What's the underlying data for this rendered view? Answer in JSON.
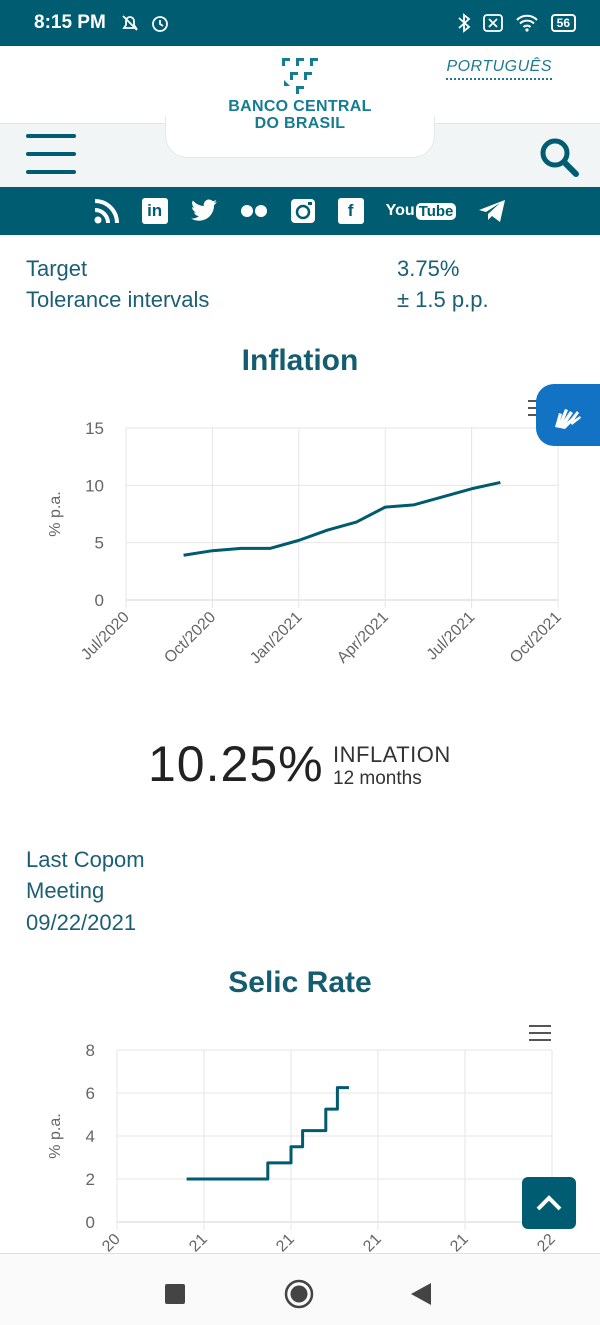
{
  "status_bar": {
    "time": "8:15 PM",
    "battery": "56",
    "left_icons": [
      "muted-bell-icon",
      "alarm-icon"
    ],
    "right_icons": [
      "bluetooth-icon",
      "sim-off-icon",
      "wifi-icon",
      "battery-icon"
    ]
  },
  "header": {
    "logo_line1": "BANCO CENTRAL",
    "logo_line2": "DO BRASIL",
    "language_link": "PORTUGUÊS"
  },
  "social": {
    "icons": [
      "rss-icon",
      "linkedin-icon",
      "twitter-icon",
      "flickr-icon",
      "instagram-icon",
      "facebook-icon",
      "youtube-icon",
      "telegram-icon"
    ],
    "linkedin_label": "in",
    "facebook_label": "f",
    "youtube_you": "You",
    "youtube_tube": "Tube"
  },
  "targets": {
    "target_label": "Target",
    "target_value": "3.75%",
    "tolerance_label": "Tolerance intervals",
    "tolerance_value": "± 1.5 p.p."
  },
  "inflation": {
    "value": "10.25%",
    "label": "INFLATION",
    "sublabel": "12 months"
  },
  "copom": {
    "line1": "Last Copom",
    "line2": "Meeting",
    "date": "09/22/2021"
  },
  "colors": {
    "primary": "#005d71",
    "accent_blue": "#1273c4",
    "line": "#005a70"
  },
  "chart_data": [
    {
      "type": "line",
      "title": "Inflation",
      "xlabel": "",
      "ylabel": "% p.a.",
      "x_ticks": [
        "Jul/2020",
        "Oct/2020",
        "Jan/2021",
        "Apr/2021",
        "Jul/2021",
        "Oct/2021"
      ],
      "ylim": [
        0,
        15
      ],
      "y_ticks": [
        "0",
        "5",
        "10",
        "15"
      ],
      "grid": true,
      "series": [
        {
          "x": [
            "2020-09",
            "2020-10",
            "2020-11",
            "2020-12",
            "2021-01",
            "2021-02",
            "2021-03",
            "2021-04",
            "2021-05",
            "2021-06",
            "2021-07",
            "2021-08"
          ],
          "values": [
            3.9,
            4.3,
            4.5,
            4.5,
            5.2,
            6.1,
            6.8,
            8.1,
            8.3,
            9.0,
            9.7,
            10.25
          ]
        }
      ]
    },
    {
      "type": "line",
      "title": "Selic Rate",
      "xlabel": "",
      "ylabel": "% p.a.",
      "x_ticks": [
        "20",
        "21",
        "21",
        "21",
        "21",
        "22"
      ],
      "ylim": [
        0,
        8
      ],
      "y_ticks": [
        "0",
        "2",
        "4",
        "6",
        "8"
      ],
      "grid": true,
      "step": true,
      "series": [
        {
          "x": [
            "2020-08",
            "2021-03",
            "2021-05",
            "2021-06",
            "2021-08",
            "2021-09",
            "2021-10"
          ],
          "values": [
            2.0,
            2.75,
            3.5,
            4.25,
            5.25,
            6.25,
            6.25
          ]
        }
      ]
    }
  ]
}
